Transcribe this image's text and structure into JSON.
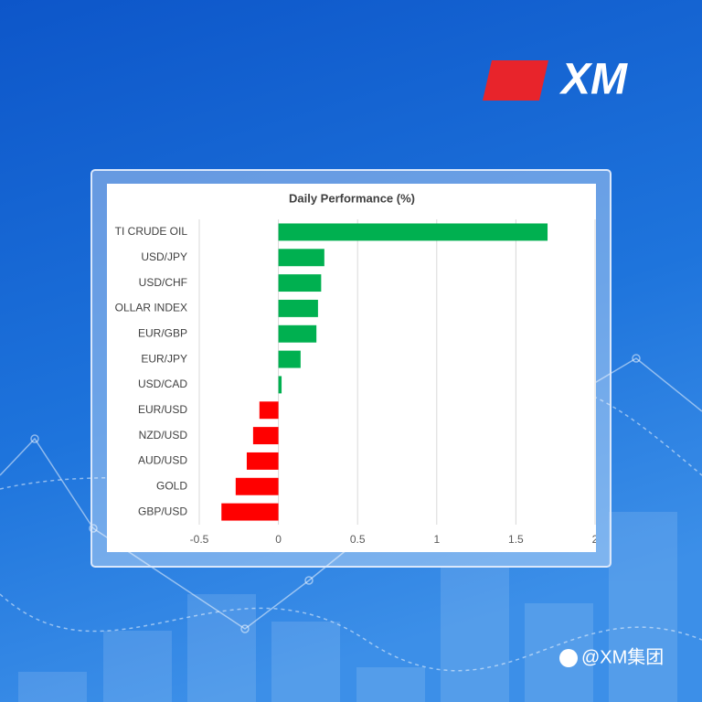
{
  "logo": "XM",
  "watermark": "@XM集团",
  "chart_data": {
    "type": "hbar",
    "title": "Daily Performance (%)",
    "categories": [
      "TI CRUDE OIL",
      "USD/JPY",
      "USD/CHF",
      "OLLAR INDEX",
      "EUR/GBP",
      "EUR/JPY",
      "USD/CAD",
      "EUR/USD",
      "NZD/USD",
      "AUD/USD",
      "GOLD",
      "GBP/USD"
    ],
    "values": [
      1.7,
      0.29,
      0.27,
      0.25,
      0.24,
      0.14,
      0.02,
      -0.12,
      -0.16,
      -0.2,
      -0.27,
      -0.36
    ],
    "positive_color": "#00b050",
    "negative_color": "#ff0000",
    "xlim": [
      -0.5,
      2
    ],
    "xticks": [
      -0.5,
      0,
      0.5,
      1,
      1.5,
      2
    ],
    "grid": true
  }
}
